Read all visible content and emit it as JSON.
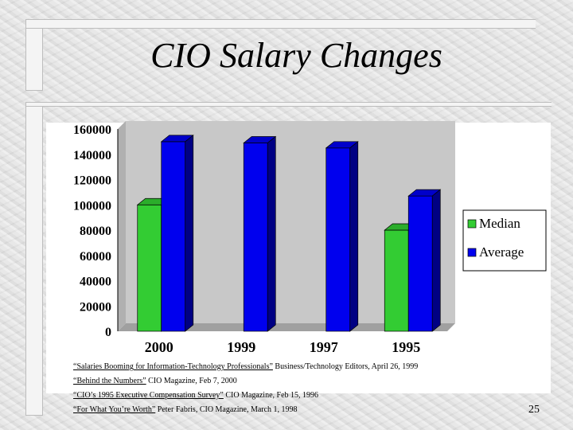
{
  "slide": {
    "title": "CIO Salary Changes",
    "page_number": "25"
  },
  "colors": {
    "median": "#33cc33",
    "average": "#0000ee",
    "plot_bg": "#c8c8c8",
    "frame_bg": "#ffffff"
  },
  "chart_data": {
    "type": "bar",
    "categories": [
      "2000",
      "1999",
      "1997",
      "1995"
    ],
    "series": [
      {
        "name": "Median",
        "values": [
          100000,
          null,
          null,
          80000
        ]
      },
      {
        "name": "Average",
        "values": [
          150000,
          149000,
          145000,
          107000
        ]
      }
    ],
    "ylim": [
      0,
      160000
    ],
    "yticks": [
      "0",
      "20000",
      "40000",
      "60000",
      "80000",
      "100000",
      "120000",
      "140000",
      "160000"
    ],
    "legend_position": "right",
    "grid": false,
    "style": "3d-column"
  },
  "references": [
    {
      "title": "“Salaries Booming for Information-Technology Professionals”",
      "source": " Business/Technology Editors, April 26, 1999"
    },
    {
      "title": "“Behind the Numbers”",
      "source": " CIO Magazine, Feb 7, 2000"
    },
    {
      "title": "“CIO’s 1995 Executive Compensation Survey”",
      "source": " CIO Magazine, Feb 15, 1996"
    },
    {
      "title": "“For What You’re Worth”",
      "source": " Peter Fabris, CIO Magazine, March 1, 1998"
    }
  ]
}
